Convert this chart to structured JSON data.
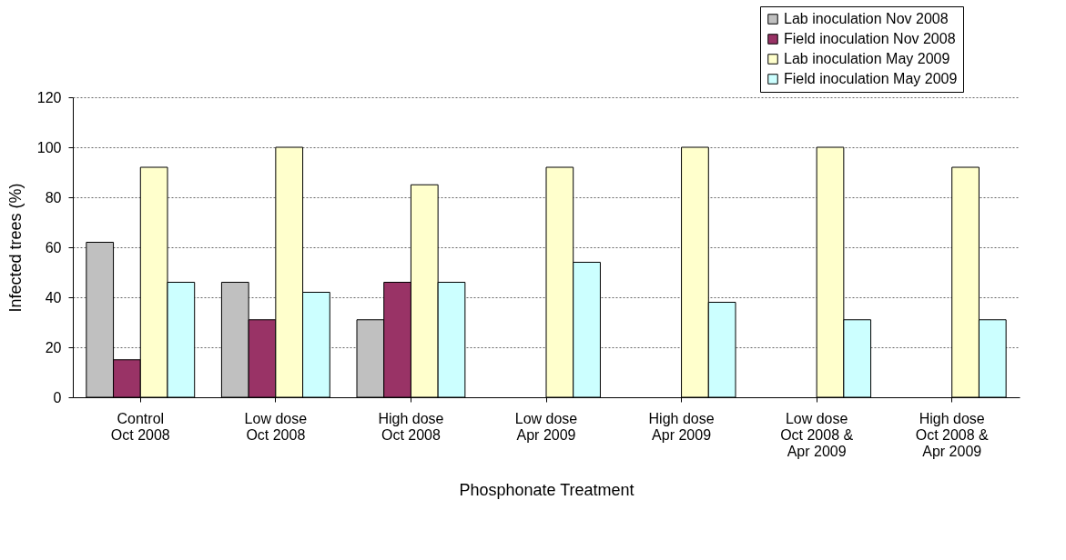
{
  "chart_data": {
    "type": "bar",
    "xlabel": "Phosphonate Treatment",
    "ylabel": "Infected trees (%)",
    "categories": [
      "Control\nOct 2008",
      "Low dose\nOct 2008",
      "High dose\nOct 2008",
      "Low dose\nApr 2009",
      "High dose\nApr 2009",
      "Low dose\nOct 2008 &\nApr 2009",
      "High dose\nOct 2008 &\nApr 2009"
    ],
    "series": [
      {
        "name": "Lab inoculation Nov 2008",
        "color": "#c0c0c0",
        "values": [
          62,
          46,
          31,
          null,
          null,
          null,
          null
        ]
      },
      {
        "name": "Field inoculation Nov 2008",
        "color": "#993366",
        "values": [
          15,
          31,
          46,
          null,
          null,
          null,
          null
        ]
      },
      {
        "name": "Lab inoculation May 2009",
        "color": "#ffffcc",
        "values": [
          92,
          100,
          85,
          92,
          100,
          100,
          92
        ]
      },
      {
        "name": "Field inoculation May 2009",
        "color": "#ccffff",
        "values": [
          46,
          42,
          46,
          54,
          38,
          31,
          31
        ]
      }
    ],
    "ylim": [
      0,
      120
    ],
    "yticks": [
      0,
      20,
      40,
      60,
      80,
      100,
      120
    ],
    "grid": "y",
    "legend": "top right"
  }
}
